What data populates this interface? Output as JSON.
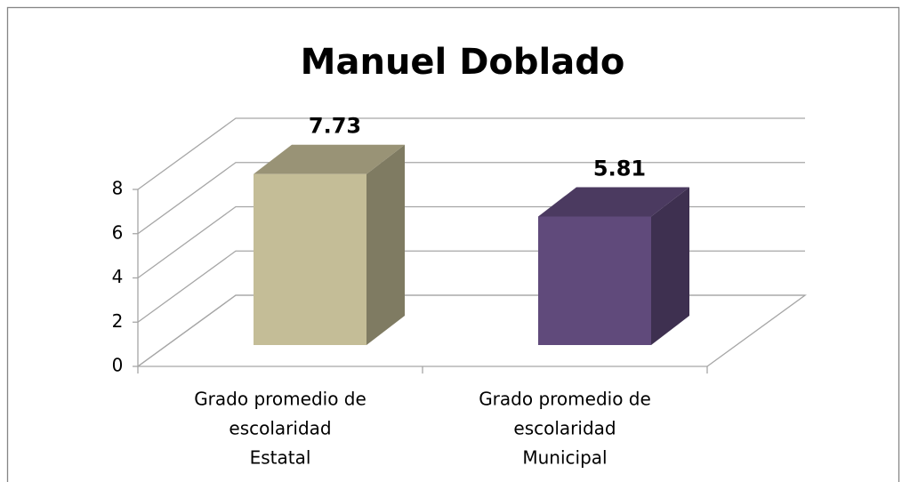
{
  "chart_data": {
    "type": "bar3d",
    "title": "Manuel Doblado",
    "categories": [
      [
        "Grado promedio de",
        "escolaridad",
        "Estatal"
      ],
      [
        "Grado promedio de",
        "escolaridad",
        "Municipal"
      ]
    ],
    "values": [
      7.73,
      5.81
    ],
    "colors": [
      "#c4bd97",
      "#604a7b"
    ],
    "ylim": [
      0,
      8
    ],
    "yticks": [
      0,
      2,
      4,
      6,
      8
    ],
    "grid": true
  }
}
